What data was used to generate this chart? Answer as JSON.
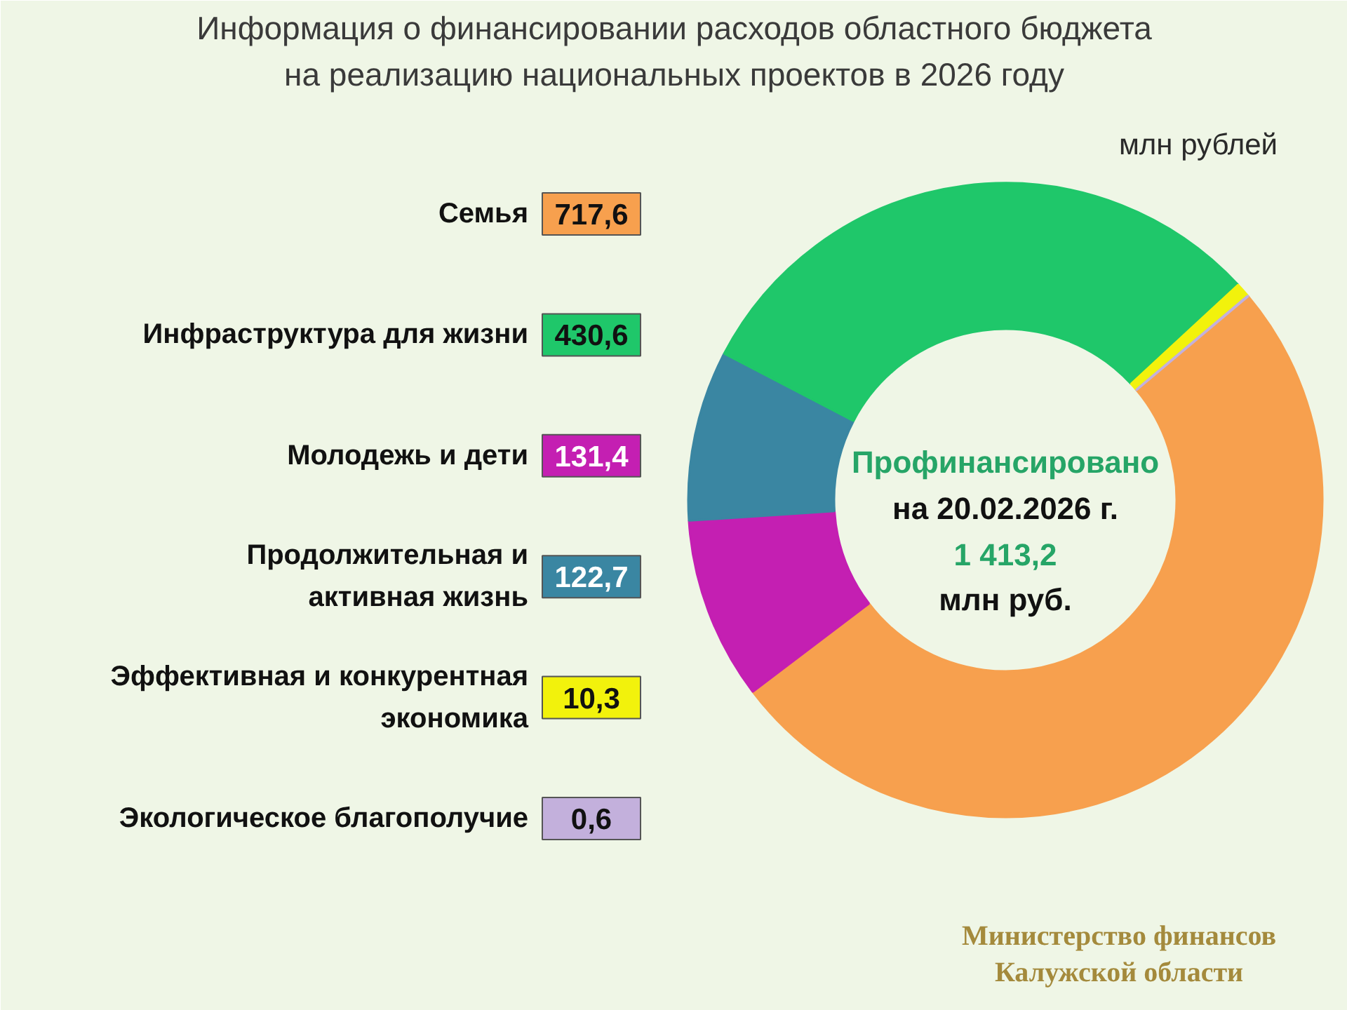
{
  "chart_data": {
    "type": "donut",
    "title": "Информация о финансировании расходов областного бюджета\nна реализацию национальных проектов в 2026 году",
    "subtitle": "млн рублей",
    "categories": [
      "Семья",
      "Инфраструктура для жизни",
      "Молодежь и дети",
      "Продолжительная и\nактивная жизнь",
      "Эффективная и конкурентная\nэкономика",
      "Экологическое благополучие"
    ],
    "values": [
      717.6,
      430.6,
      131.4,
      122.7,
      10.3,
      0.6
    ],
    "colors": [
      "#f7a04e",
      "#1fc76a",
      "#c41fb2",
      "#3a86a2",
      "#f2f20c",
      "#c3b0dc"
    ],
    "value_labels": [
      "717,6",
      "430,6",
      "131,4",
      "122,7",
      "10,3",
      "0,6"
    ],
    "legend": "left",
    "annotations": [
      "Профинансировано",
      "на 20.02.2026 г.",
      "1 413,2",
      "млн руб.",
      "Министерство финансов\nКалужской области"
    ]
  }
}
